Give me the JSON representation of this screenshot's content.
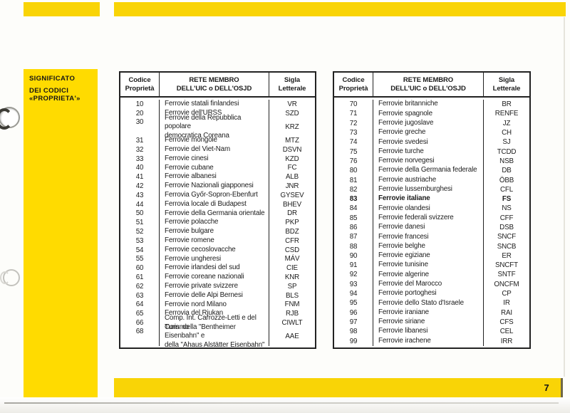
{
  "page": {
    "number": "7"
  },
  "colors": {
    "accent_yellow": "#F9D406",
    "sidebar_yellow": "#FFDB00",
    "ink": "#1b1b1b"
  },
  "sidebar": {
    "line1": "SIGNIFICATO",
    "line2": "DEI CODICI «PROPRIETA'»"
  },
  "table_header": {
    "col_code": "Codice\nProprietà",
    "col_network": "RETE MEMBRO\nDELL'UIC o DELL'OSJD",
    "col_letters": "Sigla\nLetterale"
  },
  "tables": [
    {
      "rows": [
        [
          "10",
          "Ferrovie statali finlandesi",
          "VR",
          false
        ],
        [
          "20",
          "Ferrovie dell'URSS",
          "SZD",
          false
        ],
        [
          "30",
          "Ferrovie della Repubblica popolare\ndemocratica Coreana",
          "KRZ",
          false
        ],
        [
          "31",
          "Ferrovie mongole",
          "MTZ",
          false
        ],
        [
          "32",
          "Ferrovie del Viet-Nam",
          "DSVN",
          false
        ],
        [
          "33",
          "Ferrovie cinesi",
          "KZD",
          false
        ],
        [
          "40",
          "Ferrovie cubane",
          "FC",
          false
        ],
        [
          "41",
          "Ferrovie albanesi",
          "ALB",
          false
        ],
        [
          "42",
          "Ferrovie Nazionali giapponesi",
          "JNR",
          false
        ],
        [
          "43",
          "Ferrovia Győr-Sopron-Ebenfurt",
          "GYSEV",
          false
        ],
        [
          "44",
          "Ferrovia locale di Budapest",
          "BHEV",
          false
        ],
        [
          "50",
          "Ferrovie della Germania orientale",
          "DR",
          false
        ],
        [
          "51",
          "Ferrovie polacche",
          "PKP",
          false
        ],
        [
          "52",
          "Ferrovie bulgare",
          "BDZ",
          false
        ],
        [
          "53",
          "Ferrovie romene",
          "CFR",
          false
        ],
        [
          "54",
          "Ferrovie cecoslovacche",
          "CSD",
          false
        ],
        [
          "55",
          "Ferrovie ungheresi",
          "MÁV",
          false
        ],
        [
          "60",
          "Ferrovie irlandesi del sud",
          "CIE",
          false
        ],
        [
          "61",
          "Ferrovie coreane nazionali",
          "KNR",
          false
        ],
        [
          "62",
          "Ferrovie private svizzere",
          "SP",
          false
        ],
        [
          "63",
          "Ferrovie delle Alpi Bernesi",
          "BLS",
          false
        ],
        [
          "64",
          "Ferrovie nord Milano",
          "FNM",
          false
        ],
        [
          "65",
          "Ferrovia del Rjukan",
          "RJB",
          false
        ],
        [
          "66",
          "Comp. Int. Carrozze-Letti e del Turismo",
          "CIWLT",
          false
        ],
        [
          "68",
          "Com. della \"Bentheimer Eisenbahn\" e\ndella \"Ahaus Alstätter Eisenbahn\"",
          "AAE",
          false
        ]
      ]
    },
    {
      "rows": [
        [
          "70",
          "Ferrovie britanniche",
          "BR",
          false
        ],
        [
          "71",
          "Ferrovie spagnole",
          "RENFE",
          false
        ],
        [
          "72",
          "Ferrovie jugoslave",
          "JZ",
          false
        ],
        [
          "73",
          "Ferrovie greche",
          "CH",
          false
        ],
        [
          "74",
          "Ferrovie svedesi",
          "SJ",
          false
        ],
        [
          "75",
          "Ferrovie turche",
          "TCDD",
          false
        ],
        [
          "76",
          "Ferrovie norvegesi",
          "NSB",
          false
        ],
        [
          "80",
          "Ferrovie della Germania federale",
          "DB",
          false
        ],
        [
          "81",
          "Ferrovie austriache",
          "ÖBB",
          false
        ],
        [
          "82",
          "Ferrovie lussemburghesi",
          "CFL",
          false
        ],
        [
          "83",
          "Ferrovie italiane",
          "FS",
          true
        ],
        [
          "84",
          "Ferrovie olandesi",
          "NS",
          false
        ],
        [
          "85",
          "Ferrovie federali svizzere",
          "CFF",
          false
        ],
        [
          "86",
          "Ferrovie danesi",
          "DSB",
          false
        ],
        [
          "87",
          "Ferrovie francesi",
          "SNCF",
          false
        ],
        [
          "88",
          "Ferrovie belghe",
          "SNCB",
          false
        ],
        [
          "90",
          "Ferrovie egiziane",
          "ER",
          false
        ],
        [
          "91",
          "Ferrovie tunisine",
          "SNCFT",
          false
        ],
        [
          "92",
          "Ferrovie algerine",
          "SNTF",
          false
        ],
        [
          "93",
          "Ferrovie del Marocco",
          "ONCFM",
          false
        ],
        [
          "94",
          "Ferrovie portoghesi",
          "CP",
          false
        ],
        [
          "95",
          "Ferrovie dello Stato d'Israele",
          "IR",
          false
        ],
        [
          "96",
          "Ferrovie iraniane",
          "RAI",
          false
        ],
        [
          "97",
          "Ferrovie siriane",
          "CFS",
          false
        ],
        [
          "98",
          "Ferrovie libanesi",
          "CEL",
          false
        ],
        [
          "99",
          "Ferrovie irachene",
          "IRR",
          false
        ]
      ]
    }
  ]
}
